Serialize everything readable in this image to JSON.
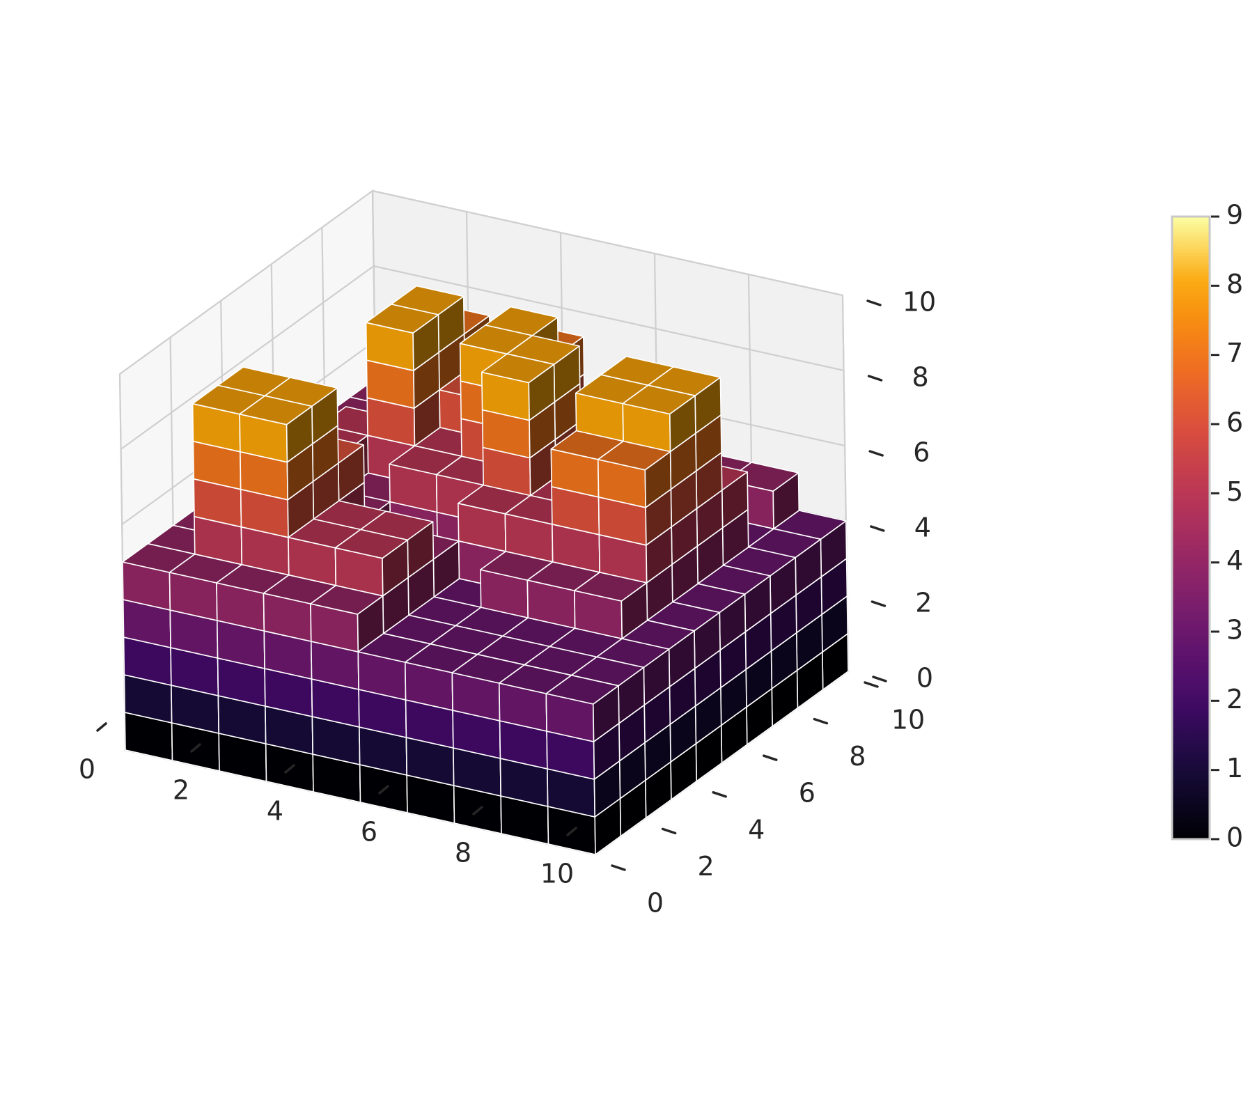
{
  "chart_data": {
    "type": "3d-voxel",
    "title": "",
    "xlabel": "",
    "ylabel": "",
    "zlabel": "",
    "xlim": [
      0,
      10
    ],
    "ylim": [
      0,
      10
    ],
    "zlim": [
      0,
      10
    ],
    "x_ticks": [
      "0",
      "2",
      "4",
      "6",
      "8",
      "10"
    ],
    "y_ticks": [
      "0",
      "2",
      "4",
      "6",
      "8",
      "10"
    ],
    "z_ticks": [
      "0",
      "2",
      "4",
      "6",
      "8",
      "10"
    ],
    "colormap": "inferno",
    "color_by": "voxel layer (z)",
    "colorbar": {
      "ticks": [
        "0",
        "1",
        "2",
        "3",
        "4",
        "5",
        "6",
        "7",
        "8",
        "9"
      ],
      "range": [
        0,
        9
      ]
    },
    "grid": true,
    "grid_shape": [
      10,
      10
    ],
    "heights_rows_x_cols_y": [
      [
        5,
        5,
        5,
        5,
        5,
        5,
        5,
        5,
        5,
        5
      ],
      [
        5,
        9,
        9,
        5,
        5,
        6,
        6,
        5,
        5,
        5
      ],
      [
        5,
        9,
        9,
        7,
        5,
        5,
        9,
        9,
        8,
        5
      ],
      [
        5,
        6,
        6,
        5,
        1,
        6,
        6,
        7,
        7,
        5
      ],
      [
        5,
        6,
        6,
        5,
        1,
        6,
        9,
        9,
        8,
        5
      ],
      [
        4,
        4,
        4,
        4,
        6,
        9,
        9,
        6,
        6,
        5
      ],
      [
        4,
        4,
        4,
        5,
        6,
        6,
        5,
        6,
        7,
        5
      ],
      [
        4,
        4,
        4,
        5,
        8,
        9,
        9,
        8,
        5,
        5
      ],
      [
        4,
        4,
        4,
        5,
        8,
        9,
        9,
        6,
        4,
        5
      ],
      [
        4,
        4,
        4,
        4,
        4,
        4,
        4,
        4,
        4,
        4
      ]
    ]
  }
}
